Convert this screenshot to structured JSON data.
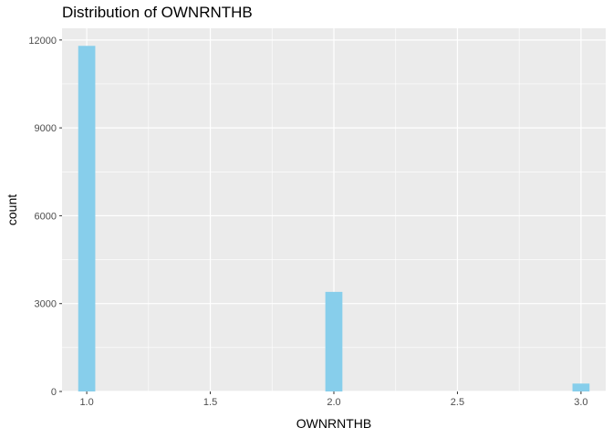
{
  "chart_data": {
    "type": "bar",
    "subtype": "histogram",
    "title": "Distribution of OWNRNTHB",
    "xlabel": "OWNRNTHB",
    "ylabel": "count",
    "x_ticks": [
      "1.0",
      "1.5",
      "2.0",
      "2.5",
      "3.0"
    ],
    "y_ticks": [
      "0",
      "3000",
      "6000",
      "9000",
      "12000"
    ],
    "xlim": [
      0.9,
      3.1
    ],
    "ylim": [
      0,
      12400
    ],
    "bins": [
      {
        "x0": 0.9655,
        "x1": 1.0345,
        "count": 11800
      },
      {
        "x0": 1.9655,
        "x1": 2.0345,
        "count": 3400
      },
      {
        "x0": 2.9655,
        "x1": 3.0345,
        "count": 270
      }
    ],
    "grid": true,
    "legend": "none",
    "colors": {
      "bar_fill": "#87CEEB",
      "panel_background": "#EBEBEB",
      "grid_major": "#FFFFFF",
      "grid_minor": "#F5F5F5"
    }
  }
}
